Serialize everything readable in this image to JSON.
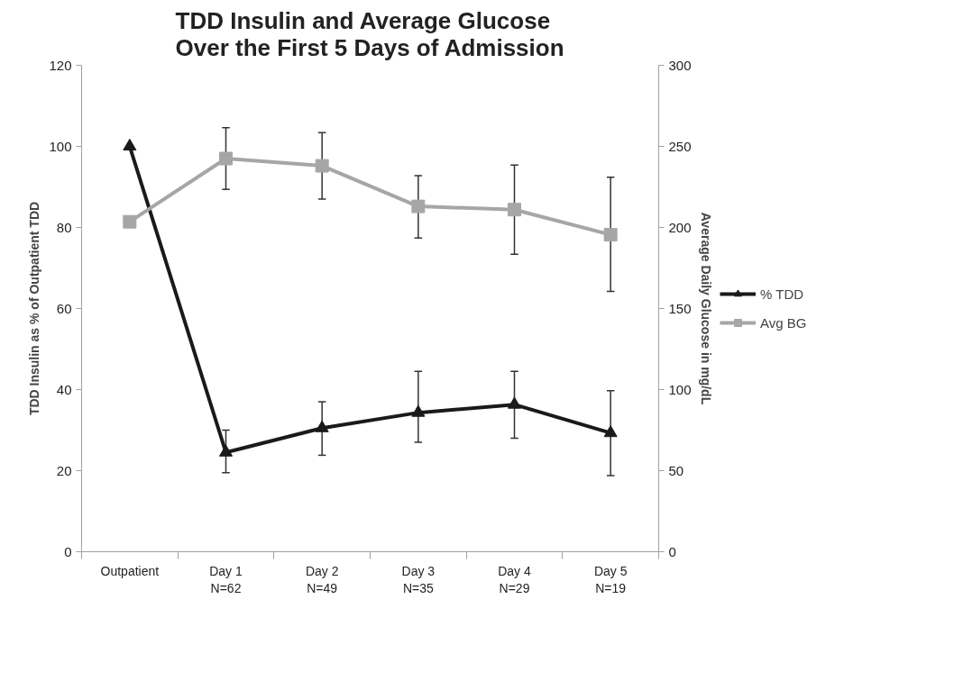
{
  "chart_data": {
    "type": "line",
    "title": "TDD Insulin and Average Glucose Over the First 5 Days of Admission",
    "ylabel": "TDD Insulin as % of Outpatient TDD",
    "y2label": "Average Daily Glucose in mg/dL",
    "categories": [
      "Outpatient",
      "Day 1\nN=62",
      "Day 2\nN=49",
      "Day 3\nN=35",
      "Day 4\nN=29",
      "Day 5\nN=19"
    ],
    "series": [
      {
        "name": "% TDD",
        "color": "#1a1a1a",
        "marker": "triangle",
        "values": [
          100,
          24.5,
          30.5,
          34.3,
          36.3,
          29.3
        ],
        "errors": [
          null,
          [
            19.5,
            30
          ],
          [
            23.8,
            37
          ],
          [
            27,
            44.5
          ],
          [
            28,
            44.5
          ],
          [
            18.8,
            39.7
          ]
        ]
      },
      {
        "name": "Avg BG",
        "color": "#a6a6a6",
        "marker": "square",
        "axis": "y2",
        "values": [
          203.5,
          242.5,
          238,
          213,
          211,
          195.5
        ],
        "errors": [
          null,
          [
            223.5,
            261.5
          ],
          [
            217.5,
            258.5
          ],
          [
            193.5,
            232
          ],
          [
            183.5,
            238.5
          ],
          [
            160.5,
            231
          ]
        ]
      }
    ],
    "ylim": [
      0,
      120
    ],
    "yticks": [
      0,
      20,
      40,
      60,
      80,
      100,
      120
    ],
    "y2lim": [
      0,
      300
    ],
    "y2ticks": [
      0,
      50,
      100,
      150,
      200,
      250,
      300
    ],
    "grid": false,
    "legend": "right",
    "line_style": "solid"
  }
}
